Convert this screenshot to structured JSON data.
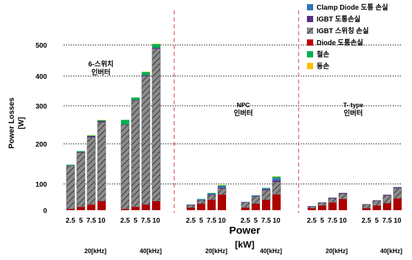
{
  "chart_data": {
    "type": "bar",
    "stacked": true,
    "ylabel_lines": [
      "Power Losses",
      "[W]"
    ],
    "xlabel_lines": [
      "Power",
      "[kW]"
    ],
    "ylim": [
      0,
      500
    ],
    "yticks": [
      0,
      100,
      200,
      300,
      400,
      500
    ],
    "grid": "dotted horizontal",
    "legend_position": "top-right",
    "categories": [
      "2.5",
      "5",
      "7.5",
      "10"
    ],
    "series": [
      {
        "key": "diode_cond",
        "name": "Diode 도통손실",
        "color": "#c00000"
      },
      {
        "key": "igbt_sw",
        "name": "IGBT 스위칭 손실",
        "color": "#8c8c8c"
      },
      {
        "key": "igbt_cond",
        "name": "IGBT 도통손실",
        "color": "#5b2c83"
      },
      {
        "key": "clamp_cond",
        "name": "Clamp Diode 도통 손실",
        "color": "#2e75b6"
      },
      {
        "key": "iron",
        "name": "철손",
        "color": "#00b050"
      },
      {
        "key": "copper",
        "name": "동손",
        "color": "#ffc000"
      }
    ],
    "legend_order": [
      "clamp_cond",
      "igbt_cond",
      "igbt_sw",
      "diode_cond",
      "iron",
      "copper"
    ],
    "groups": [
      {
        "topology": "6-스위치\n인버터",
        "frequency": "20[kHz]",
        "values": {
          "diode_cond": [
            5,
            13,
            22,
            35
          ],
          "igbt_sw": [
            140,
            165,
            195,
            222
          ],
          "igbt_cond": [
            1,
            2,
            3,
            3
          ],
          "clamp_cond": [
            0,
            0,
            0,
            0
          ],
          "iron": [
            2,
            2,
            2,
            2
          ],
          "copper": [
            0,
            0,
            1,
            1
          ]
        }
      },
      {
        "topology": "",
        "frequency": "40[kHz]",
        "values": {
          "diode_cond": [
            5,
            13,
            22,
            35
          ],
          "igbt_sw": [
            245,
            305,
            378,
            453
          ],
          "igbt_cond": [
            1,
            2,
            3,
            3
          ],
          "clamp_cond": [
            0,
            0,
            0,
            0
          ],
          "iron": [
            12,
            8,
            10,
            12
          ],
          "copper": [
            0,
            0,
            1,
            1
          ]
        }
      },
      {
        "topology": "NPC\n인버터",
        "frequency": "20[kHz]",
        "values": {
          "diode_cond": [
            10,
            25,
            40,
            60
          ],
          "igbt_sw": [
            10,
            13,
            17,
            22
          ],
          "igbt_cond": [
            1,
            2,
            3,
            4
          ],
          "clamp_cond": [
            1,
            2,
            4,
            6
          ],
          "iron": [
            0,
            1,
            2,
            3
          ],
          "copper": [
            0,
            0,
            0,
            1
          ]
        }
      },
      {
        "topology": "",
        "frequency": "40[kHz]",
        "values": {
          "diode_cond": [
            10,
            25,
            40,
            60
          ],
          "igbt_sw": [
            20,
            27,
            36,
            45
          ],
          "igbt_cond": [
            1,
            2,
            3,
            4
          ],
          "clamp_cond": [
            1,
            2,
            4,
            6
          ],
          "iron": [
            0,
            1,
            2,
            3
          ],
          "copper": [
            0,
            0,
            0,
            1
          ]
        }
      },
      {
        "topology": "T- type\n인버터",
        "frequency": "20[kHz]",
        "values": {
          "diode_cond": [
            8,
            18,
            30,
            43
          ],
          "igbt_sw": [
            7,
            10,
            15,
            20
          ],
          "igbt_cond": [
            1,
            2,
            3,
            3
          ],
          "clamp_cond": [
            0,
            0,
            0,
            0
          ],
          "iron": [
            0,
            0,
            0,
            0
          ],
          "copper": [
            0,
            0,
            0,
            0
          ]
        }
      },
      {
        "topology": "",
        "frequency": "40[kHz]",
        "values": {
          "diode_cond": [
            8,
            18,
            27,
            45
          ],
          "igbt_sw": [
            14,
            18,
            29,
            39
          ],
          "igbt_cond": [
            1,
            2,
            3,
            4
          ],
          "clamp_cond": [
            0,
            0,
            0,
            0
          ],
          "iron": [
            0,
            0,
            0,
            0
          ],
          "copper": [
            0,
            0,
            0,
            0
          ]
        }
      }
    ]
  }
}
